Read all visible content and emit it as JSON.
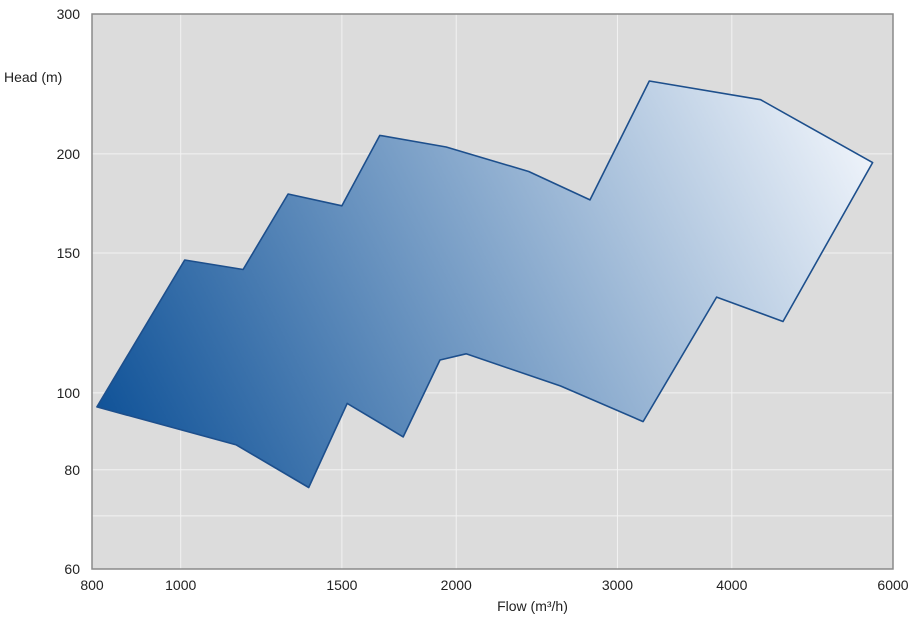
{
  "chart_data": {
    "type": "area",
    "title": "",
    "xlabel": "Flow (m³/h)",
    "ylabel": "Head (m)",
    "x_scale": "log",
    "y_scale": "log",
    "xlim": [
      800,
      6000
    ],
    "ylim": [
      60,
      300
    ],
    "x_ticks": [
      800,
      1000,
      1500,
      2000,
      3000,
      4000,
      6000
    ],
    "x_tick_labels": [
      "800",
      "1000",
      "1500",
      "2000",
      "3000",
      "4000",
      "6000"
    ],
    "y_ticks": [
      60,
      80,
      100,
      150,
      200,
      300
    ],
    "y_tick_labels": [
      "60",
      "80",
      "100",
      "150",
      "200",
      "300"
    ],
    "x_gridlines": [
      1000,
      1500,
      2000,
      3000,
      4000
    ],
    "y_gridlines": [
      70,
      80,
      100,
      150,
      200
    ],
    "grid": true,
    "legend": "none",
    "colors": {
      "plot_background": "#dcdcdc",
      "grid": "#f2f2f2",
      "frame": "#8a8a8a",
      "region_stroke": "#1d4f8c",
      "region_gradient_dark": "#0b4f96",
      "region_gradient_light": "#eef3fa"
    },
    "region_outline": [
      [
        810,
        96
      ],
      [
        1010,
        147
      ],
      [
        1170,
        143
      ],
      [
        1310,
        178
      ],
      [
        1500,
        172
      ],
      [
        1650,
        211
      ],
      [
        1950,
        204
      ],
      [
        2400,
        190
      ],
      [
        2800,
        175
      ],
      [
        3250,
        247
      ],
      [
        4300,
        234
      ],
      [
        5700,
        195
      ],
      [
        4550,
        123
      ],
      [
        3850,
        132
      ],
      [
        3200,
        92
      ],
      [
        2600,
        102
      ],
      [
        2050,
        112
      ],
      [
        1920,
        110
      ],
      [
        1750,
        88
      ],
      [
        1520,
        97
      ],
      [
        1380,
        76
      ],
      [
        1150,
        86
      ],
      [
        810,
        96
      ]
    ]
  }
}
